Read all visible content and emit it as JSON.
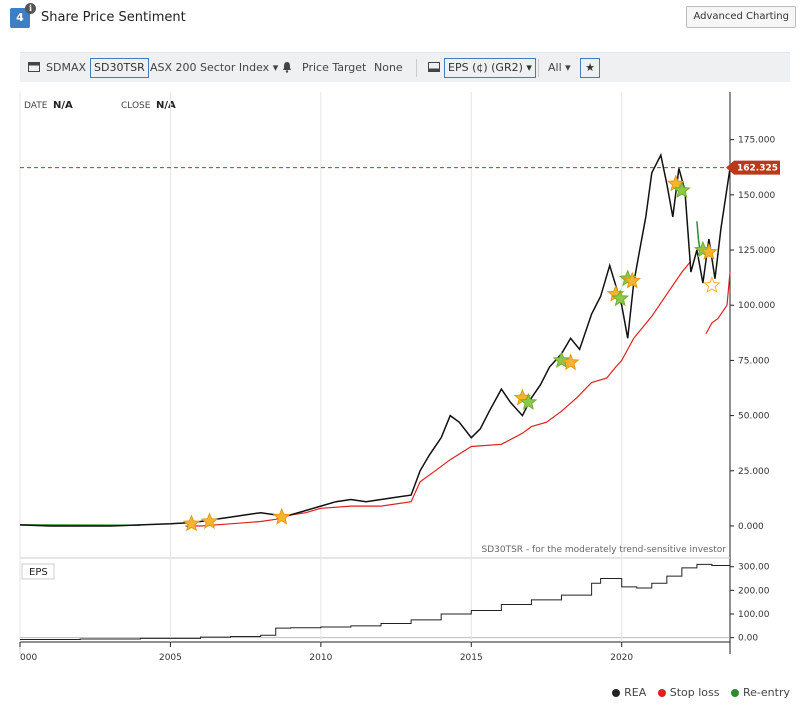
{
  "header": {
    "badge": "4",
    "info_glyph": "i",
    "title": "Share Price Sentiment",
    "advanced_button": "Advanced Charting"
  },
  "toolbar": {
    "index_label": "SDMAX",
    "model": "SD30TSR",
    "sector": "ASX 200 Sector Index",
    "price_target_label": "Price Target",
    "price_target_value": "None",
    "eps_select": "EPS (¢) (GR2)",
    "range": "All",
    "star_glyph": "★"
  },
  "readout": {
    "date_label": "DATE",
    "date_value": "N/A",
    "close_label": "CLOSE",
    "close_value": "N/A"
  },
  "colors": {
    "price": "#111111",
    "stop_loss": "#e02020",
    "reentry": "#2e8b2e",
    "target": "#b83a1a",
    "star_orange": "#f5b52e",
    "star_green": "#8cc84b"
  },
  "chart_data": [
    {
      "type": "line",
      "x_range": [
        2000,
        2023.6
      ],
      "ylim": [
        -5,
        183
      ],
      "y_ticks": [
        "0.000",
        "25.000",
        "50.000",
        "75.000",
        "100.000",
        "125.000",
        "150.000",
        "175.000"
      ],
      "x_ticks": [
        "000",
        "2005",
        "2010",
        "2015",
        "2020"
      ],
      "last_price": 162.325,
      "last_price_label": "162.325",
      "footnote": "SD30TSR - for the moderately trend-sensitive investor",
      "series": [
        {
          "name": "REA",
          "x": [
            2000,
            2001,
            2002,
            2003,
            2004,
            2005,
            2005.6,
            2006,
            2006.5,
            2007,
            2007.5,
            2008,
            2008.5,
            2008.8,
            2009,
            2009.5,
            2010,
            2010.5,
            2011,
            2011.5,
            2012,
            2012.5,
            2013,
            2013.3,
            2013.6,
            2014,
            2014.3,
            2014.6,
            2015,
            2015.3,
            2015.6,
            2016,
            2016.3,
            2016.7,
            2017,
            2017.3,
            2017.6,
            2018,
            2018.3,
            2018.6,
            2019,
            2019.3,
            2019.6,
            2020,
            2020.2,
            2020.4,
            2020.6,
            2020.8,
            2021,
            2021.3,
            2021.5,
            2021.7,
            2021.9,
            2022.1,
            2022.3,
            2022.5,
            2022.7,
            2022.9,
            2023.1,
            2023.3,
            2023.6
          ],
          "values": [
            0.5,
            0,
            0,
            0,
            0.5,
            1,
            1.5,
            2,
            3,
            4,
            5,
            6,
            5,
            4.5,
            5,
            7,
            9,
            11,
            12,
            11,
            12,
            13,
            14,
            25,
            32,
            40,
            50,
            47,
            40,
            44,
            52,
            62,
            56,
            50,
            58,
            64,
            72,
            78,
            85,
            80,
            96,
            104,
            118,
            100,
            85,
            110,
            125,
            140,
            160,
            168,
            155,
            140,
            162,
            152,
            115,
            125,
            110,
            130,
            112,
            135,
            162
          ]
        },
        {
          "name": "Stop loss",
          "x": [
            2005.5,
            2006,
            2007,
            2008,
            2008.5,
            2009,
            2009.5,
            2010,
            2011,
            2012,
            2013,
            2013.3,
            2013.8,
            2014.3,
            2015,
            2016,
            2016.7,
            2017,
            2017.5,
            2018,
            2018.5,
            2019,
            2019.5,
            2019.8,
            2020,
            2020.2,
            2020.4,
            2020.7,
            2021,
            2021.5,
            2022,
            2022.3
          ],
          "values": [
            0,
            0,
            1,
            2,
            3,
            5,
            6,
            8,
            9,
            9,
            11,
            20,
            25,
            30,
            36,
            37,
            42,
            45,
            47,
            52,
            58,
            65,
            67,
            72,
            75,
            80,
            85,
            90,
            95,
            105,
            115,
            120
          ]
        },
        {
          "name": "Stop loss (segment 2)",
          "x": [
            2022.8,
            2023,
            2023.2,
            2023.5,
            2023.6
          ],
          "values": [
            87,
            92,
            94,
            100,
            115
          ]
        },
        {
          "name": "Re-entry",
          "x": [
            2022.5,
            2022.55,
            2022.6
          ],
          "values": [
            138,
            130,
            125
          ]
        }
      ],
      "signals": [
        {
          "x": 2005.7,
          "y": 1,
          "kind": "orange"
        },
        {
          "x": 2006.3,
          "y": 2,
          "kind": "orange"
        },
        {
          "x": 2008.7,
          "y": 4,
          "kind": "orange"
        },
        {
          "x": 2016.7,
          "y": 58,
          "kind": "orange"
        },
        {
          "x": 2016.9,
          "y": 56,
          "kind": "green"
        },
        {
          "x": 2018.0,
          "y": 75,
          "kind": "green"
        },
        {
          "x": 2018.3,
          "y": 74,
          "kind": "orange"
        },
        {
          "x": 2019.8,
          "y": 105,
          "kind": "orange"
        },
        {
          "x": 2019.95,
          "y": 103,
          "kind": "green"
        },
        {
          "x": 2020.2,
          "y": 112,
          "kind": "green"
        },
        {
          "x": 2020.35,
          "y": 111,
          "kind": "orange"
        },
        {
          "x": 2021.8,
          "y": 155,
          "kind": "orange"
        },
        {
          "x": 2022.0,
          "y": 152,
          "kind": "green"
        },
        {
          "x": 2022.7,
          "y": 125,
          "kind": "green"
        },
        {
          "x": 2022.9,
          "y": 124,
          "kind": "orange"
        },
        {
          "x": 2023.0,
          "y": 109,
          "kind": "orange-outline"
        }
      ]
    },
    {
      "type": "line",
      "panel_label": "EPS",
      "x_range": [
        2000,
        2023.6
      ],
      "ylim": [
        -10,
        320
      ],
      "y_ticks": [
        "0.00",
        "100.00",
        "200.00",
        "300.00"
      ],
      "series": [
        {
          "name": "EPS",
          "x": [
            2000,
            2002,
            2004,
            2006,
            2007,
            2008,
            2008.5,
            2009,
            2010,
            2011,
            2012,
            2013,
            2014,
            2015,
            2016,
            2017,
            2018,
            2019,
            2019.3,
            2020,
            2020.5,
            2021,
            2021.5,
            2022,
            2022.5,
            2023,
            2023.6
          ],
          "values": [
            -8,
            -6,
            -3,
            2,
            5,
            10,
            40,
            42,
            45,
            50,
            60,
            75,
            100,
            115,
            140,
            160,
            180,
            230,
            250,
            215,
            210,
            230,
            260,
            295,
            310,
            305,
            285
          ]
        }
      ]
    }
  ],
  "legend": [
    {
      "label": "REA",
      "color": "#222222"
    },
    {
      "label": "Stop loss",
      "color": "#e02020"
    },
    {
      "label": "Re-entry",
      "color": "#2e8b2e"
    }
  ]
}
